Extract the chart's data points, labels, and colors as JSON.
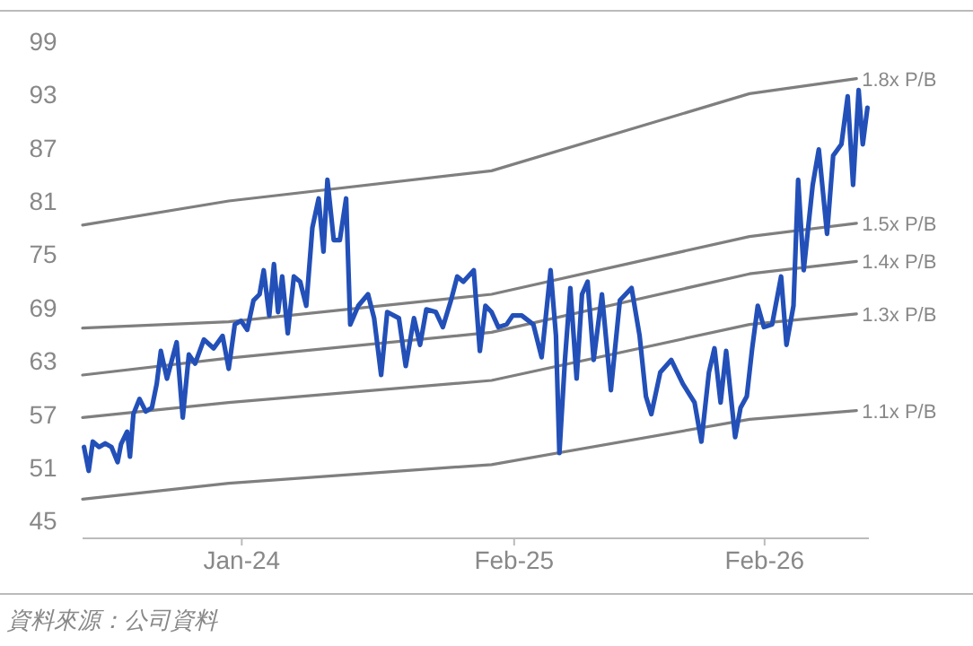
{
  "chart_data": {
    "type": "line",
    "xlim": [
      "2023-05-14",
      "2026-07-03"
    ],
    "ylim": [
      43,
      99
    ],
    "yticks": [
      45,
      51,
      57,
      63,
      69,
      75,
      81,
      87,
      93,
      99
    ],
    "xticks": [
      {
        "value": "2024-01-01",
        "label": "Jan-24"
      },
      {
        "value": "2025-02-01",
        "label": "Feb-25"
      },
      {
        "value": "2026-02-01",
        "label": "Feb-26"
      }
    ],
    "legend": false,
    "grid": false,
    "annotations": [
      "資料來源：公司資料"
    ],
    "series": [
      {
        "color": "#2350b8",
        "x": [
          "2023-05-16",
          "2023-05-23",
          "2023-05-29",
          "2023-06-07",
          "2023-06-16",
          "2023-06-25",
          "2023-07-04",
          "2023-07-09",
          "2023-07-18",
          "2023-07-22",
          "2023-07-27",
          "2023-08-05",
          "2023-08-14",
          "2023-08-23",
          "2023-08-30",
          "2023-09-05",
          "2023-09-14",
          "2023-09-28",
          "2023-10-07",
          "2023-10-16",
          "2023-10-25",
          "2023-11-07",
          "2023-11-21",
          "2023-12-04",
          "2023-12-13",
          "2023-12-22",
          "2023-12-31",
          "2024-01-09",
          "2024-01-18",
          "2024-01-27",
          "2024-02-02",
          "2024-02-10",
          "2024-02-17",
          "2024-02-23",
          "2024-02-29",
          "2024-03-08",
          "2024-03-17",
          "2024-03-26",
          "2024-04-04",
          "2024-04-13",
          "2024-04-22",
          "2024-04-29",
          "2024-05-05",
          "2024-05-14",
          "2024-05-23",
          "2024-06-01",
          "2024-06-07",
          "2024-06-19",
          "2024-07-03",
          "2024-07-12",
          "2024-07-22",
          "2024-07-31",
          "2024-08-17",
          "2024-08-27",
          "2024-09-08",
          "2024-09-17",
          "2024-09-26",
          "2024-10-10",
          "2024-10-20",
          "2024-11-01",
          "2024-11-10",
          "2024-11-19",
          "2024-12-04",
          "2024-12-13",
          "2024-12-21",
          "2024-12-30",
          "2025-01-09",
          "2025-01-21",
          "2025-01-30",
          "2025-02-12",
          "2025-03-01",
          "2025-03-13",
          "2025-03-26",
          "2025-04-03",
          "2025-04-08",
          "2025-04-16",
          "2025-04-24",
          "2025-05-03",
          "2025-05-11",
          "2025-05-19",
          "2025-05-28",
          "2025-06-09",
          "2025-06-22",
          "2025-07-05",
          "2025-07-22",
          "2025-08-03",
          "2025-08-12",
          "2025-08-20",
          "2025-09-02",
          "2025-09-18",
          "2025-10-05",
          "2025-10-22",
          "2025-11-01",
          "2025-11-12",
          "2025-11-20",
          "2025-11-29",
          "2025-12-07",
          "2025-12-20",
          "2025-12-28",
          "2026-01-06",
          "2026-01-14",
          "2026-01-22",
          "2026-01-31",
          "2026-02-12",
          "2026-02-25",
          "2026-03-05",
          "2026-03-15",
          "2026-03-22",
          "2026-03-30",
          "2026-04-12",
          "2026-04-21",
          "2026-05-03",
          "2026-05-12",
          "2026-05-24",
          "2026-06-02",
          "2026-06-10",
          "2026-06-18",
          "2026-06-24",
          "2026-07-01"
        ],
        "values": [
          53.3,
          50.6,
          53.9,
          53.3,
          53.7,
          53.3,
          51.6,
          53.6,
          55.0,
          52.2,
          57.0,
          58.7,
          57.3,
          57.7,
          60.4,
          64.1,
          61.0,
          65.1,
          56.6,
          63.7,
          62.7,
          65.4,
          64.4,
          65.8,
          62.1,
          67.1,
          67.5,
          66.5,
          69.8,
          70.5,
          73.2,
          68.1,
          73.9,
          68.5,
          72.5,
          66.1,
          72.5,
          71.9,
          69.2,
          78.0,
          81.3,
          75.3,
          83.4,
          76.6,
          76.6,
          81.3,
          67.1,
          69.2,
          70.5,
          67.8,
          61.4,
          68.5,
          67.8,
          62.4,
          67.8,
          64.8,
          68.8,
          68.5,
          66.8,
          69.8,
          72.5,
          71.9,
          73.2,
          64.1,
          69.2,
          68.5,
          66.8,
          67.1,
          68.1,
          68.1,
          67.1,
          63.4,
          73.2,
          65.8,
          52.6,
          63.1,
          71.2,
          61.0,
          70.5,
          71.9,
          63.1,
          70.5,
          59.7,
          69.8,
          71.2,
          65.8,
          59.0,
          57.0,
          61.7,
          63.1,
          60.4,
          58.3,
          53.9,
          61.7,
          64.4,
          58.3,
          64.1,
          54.4,
          57.7,
          59.0,
          64.4,
          69.2,
          66.8,
          67.1,
          72.5,
          64.8,
          69.2,
          83.4,
          73.2,
          82.8,
          86.8,
          77.3,
          86.1,
          87.4,
          92.8,
          82.8,
          93.5,
          87.4,
          91.5
        ]
      },
      {
        "name": "1.8x P/B",
        "color": "#7f7f7f",
        "x": [
          "2023-05-14",
          "2023-12-13",
          "2024-12-30",
          "2026-01-10",
          "2026-06-15"
        ],
        "values": [
          78.3,
          81.0,
          84.4,
          93.1,
          94.8
        ]
      },
      {
        "name": "1.5x P/B",
        "color": "#7f7f7f",
        "x": [
          "2023-05-14",
          "2023-12-13",
          "2024-12-30",
          "2026-01-10",
          "2026-06-15"
        ],
        "values": [
          66.7,
          67.4,
          70.5,
          77.0,
          78.5
        ]
      },
      {
        "name": "1.4x P/B",
        "color": "#7f7f7f",
        "x": [
          "2023-05-14",
          "2023-12-13",
          "2024-12-30",
          "2026-01-10",
          "2026-06-15"
        ],
        "values": [
          61.4,
          63.3,
          66.2,
          72.8,
          74.2
        ]
      },
      {
        "name": "1.3x P/B",
        "color": "#7f7f7f",
        "x": [
          "2023-05-14",
          "2023-12-13",
          "2024-12-30",
          "2026-01-10",
          "2026-06-15"
        ],
        "values": [
          56.6,
          58.3,
          60.8,
          67.1,
          68.3
        ]
      },
      {
        "name": "1.1x P/B",
        "color": "#7f7f7f",
        "x": [
          "2023-05-14",
          "2023-12-13",
          "2024-12-30",
          "2026-01-10",
          "2026-06-15"
        ],
        "values": [
          47.4,
          49.2,
          51.3,
          56.4,
          57.4
        ]
      }
    ]
  }
}
